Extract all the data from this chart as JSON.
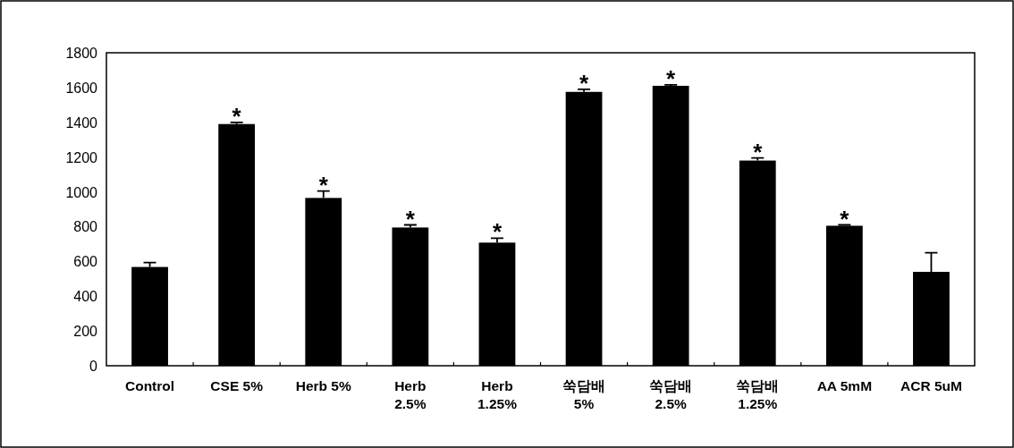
{
  "chart_data": {
    "type": "bar",
    "categories": [
      "Control",
      "CSE 5%",
      "Herb 5%",
      "Herb\n2.5%",
      "Herb\n1.25%",
      "쑥담배\n5%",
      "쑥담배\n2.5%",
      "쑥담배\n1.25%",
      "AA 5mM",
      "ACR 5uM"
    ],
    "values": [
      568,
      1390,
      965,
      795,
      708,
      1575,
      1610,
      1180,
      805,
      540
    ],
    "errors": [
      25,
      10,
      40,
      15,
      25,
      15,
      5,
      15,
      5,
      110
    ],
    "color": "#000000",
    "ylim": [
      0,
      1800
    ],
    "yticks": [
      0,
      200,
      400,
      600,
      800,
      1000,
      1200,
      1400,
      1600,
      1800
    ],
    "grid": false,
    "annotations": [
      {
        "text": "*",
        "x": "CSE 5%",
        "y": 1400
      },
      {
        "text": "*",
        "x": "Herb 5%",
        "y": 1005
      },
      {
        "text": "*",
        "x": "Herb\n2.5%",
        "y": 810
      },
      {
        "text": "*",
        "x": "Herb\n1.25%",
        "y": 733
      },
      {
        "text": "*",
        "x": "쑥담배\n5%",
        "y": 1590
      },
      {
        "text": "*",
        "x": "쑥담배\n2.5%",
        "y": 1615
      },
      {
        "text": "*",
        "x": "쑥담배\n1.25%",
        "y": 1195
      },
      {
        "text": "*",
        "x": "AA 5mM",
        "y": 810
      }
    ]
  }
}
